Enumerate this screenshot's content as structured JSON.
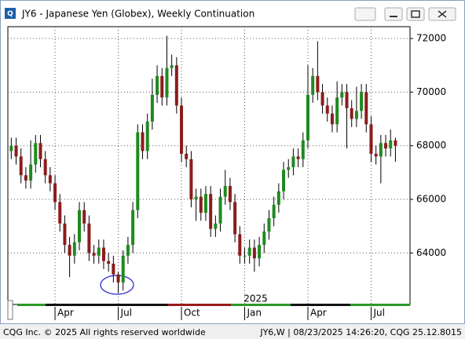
{
  "chart_data": {
    "type": "candlestick",
    "title": "JY6 - Japanese Yen (Globex), Weekly Continuation",
    "footer_left": "CQG Inc. © 2025 All rights reserved worldwide",
    "footer_right": "JY6,W | 08/23/2025 14:26:20, CQG 25.12.8015",
    "annotation": "2025",
    "up_color": "#1f8a1f",
    "down_color": "#8c1c1c",
    "ylim": [
      62080,
      72440
    ],
    "yticks": [
      64000,
      66000,
      68000,
      70000,
      72000
    ],
    "xlim": [
      -0.7,
      82
    ],
    "xticks": [
      {
        "value": 9,
        "label": "Apr"
      },
      {
        "value": 22,
        "label": "Jul"
      },
      {
        "value": 35,
        "label": "Oct"
      },
      {
        "value": 48,
        "label": "Jan"
      },
      {
        "value": 61,
        "label": "Apr"
      },
      {
        "value": 74,
        "label": "Jul"
      }
    ],
    "grid": true,
    "open": [
      67800,
      68000,
      67600,
      66900,
      66700,
      67300,
      68100,
      67500,
      66900,
      66600,
      65900,
      65100,
      64300,
      63900,
      64400,
      65600,
      65100,
      64000,
      63900,
      64200,
      63700,
      63600,
      63200,
      62900,
      63900,
      64300,
      65600,
      68500,
      67800,
      68900,
      69900,
      70600,
      69800,
      70900,
      71000,
      69500,
      67700,
      67500,
      66000,
      66100,
      65500,
      66200,
      64900,
      65100,
      66100,
      66500,
      65900,
      64700,
      63900,
      63900,
      64200,
      63800,
      64300,
      64800,
      65300,
      65800,
      66300,
      67100,
      67200,
      67600,
      67500,
      68200,
      69900,
      70600,
      70000,
      69500,
      69200,
      68800,
      69800,
      70000,
      69400,
      69000,
      69300,
      70000,
      68800,
      67700,
      67600,
      68100,
      67900,
      68200
    ],
    "high": [
      68300,
      68300,
      67900,
      67200,
      68200,
      68400,
      68400,
      67800,
      67200,
      66900,
      66200,
      65400,
      64600,
      64700,
      65900,
      65900,
      65400,
      64300,
      64500,
      64500,
      64000,
      63900,
      63300,
      64100,
      64600,
      65900,
      68800,
      68800,
      69200,
      70500,
      71000,
      70900,
      72100,
      71400,
      71300,
      69800,
      68000,
      67800,
      66400,
      66400,
      66500,
      66500,
      65400,
      66400,
      67100,
      66800,
      66200,
      65000,
      64200,
      64500,
      64500,
      64600,
      65100,
      65600,
      66100,
      66600,
      67400,
      67500,
      67900,
      67900,
      68500,
      71000,
      70900,
      71900,
      70300,
      69800,
      69500,
      70400,
      70300,
      70300,
      69700,
      70200,
      70300,
      70300,
      69100,
      68000,
      68400,
      68400,
      68600,
      68300
    ],
    "low": [
      67500,
      67300,
      66600,
      66400,
      66400,
      67000,
      67200,
      66600,
      66300,
      65600,
      64800,
      64000,
      63100,
      63600,
      64100,
      64800,
      63700,
      63600,
      63600,
      63400,
      63300,
      62900,
      62500,
      62600,
      63600,
      64000,
      65300,
      67500,
      67500,
      68600,
      69600,
      69500,
      69500,
      70600,
      69200,
      67400,
      67200,
      65700,
      65200,
      65200,
      65200,
      64600,
      64600,
      64800,
      65800,
      65600,
      64400,
      63600,
      63600,
      63600,
      63300,
      63500,
      64000,
      64500,
      65000,
      65500,
      66000,
      66800,
      66900,
      67200,
      67200,
      67900,
      69600,
      69700,
      69200,
      68900,
      68500,
      68500,
      69500,
      67900,
      68700,
      68700,
      69000,
      68500,
      67400,
      67300,
      66600,
      67600,
      67600,
      67400
    ],
    "close": [
      68000,
      67600,
      66900,
      66700,
      67300,
      68100,
      67500,
      66900,
      66600,
      65900,
      65100,
      64300,
      63900,
      64400,
      65600,
      65100,
      64000,
      63900,
      64200,
      63700,
      63600,
      63200,
      62900,
      63900,
      64300,
      65600,
      68500,
      67800,
      68900,
      69900,
      70600,
      69800,
      70900,
      71000,
      69500,
      67700,
      67500,
      66000,
      66100,
      65500,
      66200,
      64900,
      65100,
      66100,
      66500,
      65900,
      64700,
      63900,
      63900,
      64200,
      63800,
      64300,
      64800,
      65300,
      65800,
      66300,
      67100,
      67200,
      67600,
      67500,
      68200,
      69900,
      70600,
      70000,
      69500,
      69200,
      68800,
      69800,
      70000,
      69400,
      69000,
      69300,
      70000,
      68800,
      67700,
      67600,
      68100,
      67900,
      68200,
      68000
    ]
  }
}
